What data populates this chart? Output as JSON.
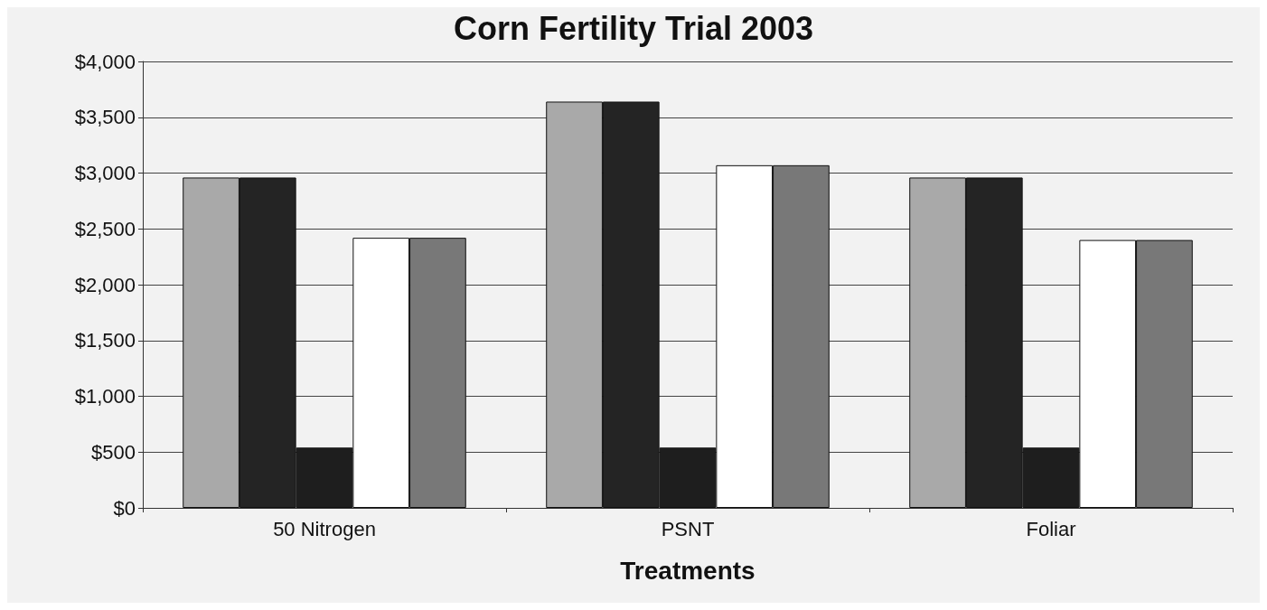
{
  "chart_data": {
    "type": "bar",
    "title": "Corn Fertility Trial 2003",
    "xlabel": "Treatments",
    "categories": [
      "50 Nitrogen",
      "PSNT",
      "Foliar"
    ],
    "series": [
      {
        "color": "#a9a9a9",
        "values": [
          2960,
          3640,
          2960
        ]
      },
      {
        "color": "#242424",
        "values": [
          2960,
          3640,
          2960
        ]
      },
      {
        "color": "#1e1e1e",
        "values": [
          540,
          540,
          540
        ]
      },
      {
        "color": "#ffffff",
        "values": [
          2420,
          3070,
          2400
        ]
      },
      {
        "color": "#787878",
        "values": [
          2420,
          3070,
          2400
        ]
      }
    ],
    "ylim": [
      0,
      4000
    ],
    "yticks": [
      {
        "value": 0,
        "label": "$0"
      },
      {
        "value": 500,
        "label": "$500"
      },
      {
        "value": 1000,
        "label": "$1,000"
      },
      {
        "value": 1500,
        "label": "$1,500"
      },
      {
        "value": 2000,
        "label": "$2,000"
      },
      {
        "value": 2500,
        "label": "$2,500"
      },
      {
        "value": 3000,
        "label": "$3,000"
      },
      {
        "value": 3500,
        "label": "$3,500"
      },
      {
        "value": 4000,
        "label": "$4,000"
      }
    ],
    "grid": "y"
  }
}
